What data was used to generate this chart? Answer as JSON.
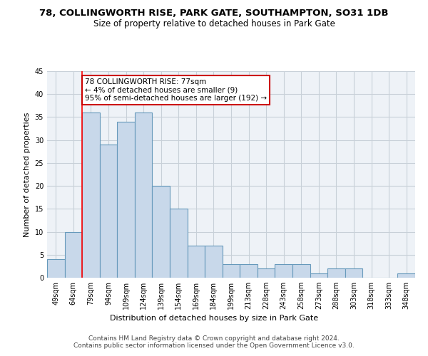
{
  "title": "78, COLLINGWORTH RISE, PARK GATE, SOUTHAMPTON, SO31 1DB",
  "subtitle": "Size of property relative to detached houses in Park Gate",
  "xlabel": "Distribution of detached houses by size in Park Gate",
  "ylabel": "Number of detached properties",
  "categories": [
    "49sqm",
    "64sqm",
    "79sqm",
    "94sqm",
    "109sqm",
    "124sqm",
    "139sqm",
    "154sqm",
    "169sqm",
    "184sqm",
    "199sqm",
    "213sqm",
    "228sqm",
    "243sqm",
    "258sqm",
    "273sqm",
    "288sqm",
    "303sqm",
    "318sqm",
    "333sqm",
    "348sqm"
  ],
  "values": [
    4,
    10,
    36,
    29,
    34,
    36,
    20,
    15,
    7,
    7,
    3,
    3,
    2,
    3,
    3,
    1,
    2,
    2,
    0,
    0,
    1
  ],
  "bar_color": "#c8d8ea",
  "bar_edge_color": "#6699bb",
  "red_line_index": 2,
  "annotation_line1": "78 COLLINGWORTH RISE: 77sqm",
  "annotation_line2": "← 4% of detached houses are smaller (9)",
  "annotation_line3": "95% of semi-detached houses are larger (192) →",
  "annotation_box_color": "#ffffff",
  "annotation_box_edge_color": "#cc0000",
  "ylim": [
    0,
    45
  ],
  "yticks": [
    0,
    5,
    10,
    15,
    20,
    25,
    30,
    35,
    40,
    45
  ],
  "grid_color": "#c8d0d8",
  "background_color": "#eef2f7",
  "title_fontsize": 9.5,
  "subtitle_fontsize": 8.5,
  "axis_label_fontsize": 8,
  "tick_fontsize": 7,
  "ylabel_fontsize": 8,
  "footer_text": "Contains HM Land Registry data © Crown copyright and database right 2024.\nContains public sector information licensed under the Open Government Licence v3.0.",
  "footer_fontsize": 6.5
}
